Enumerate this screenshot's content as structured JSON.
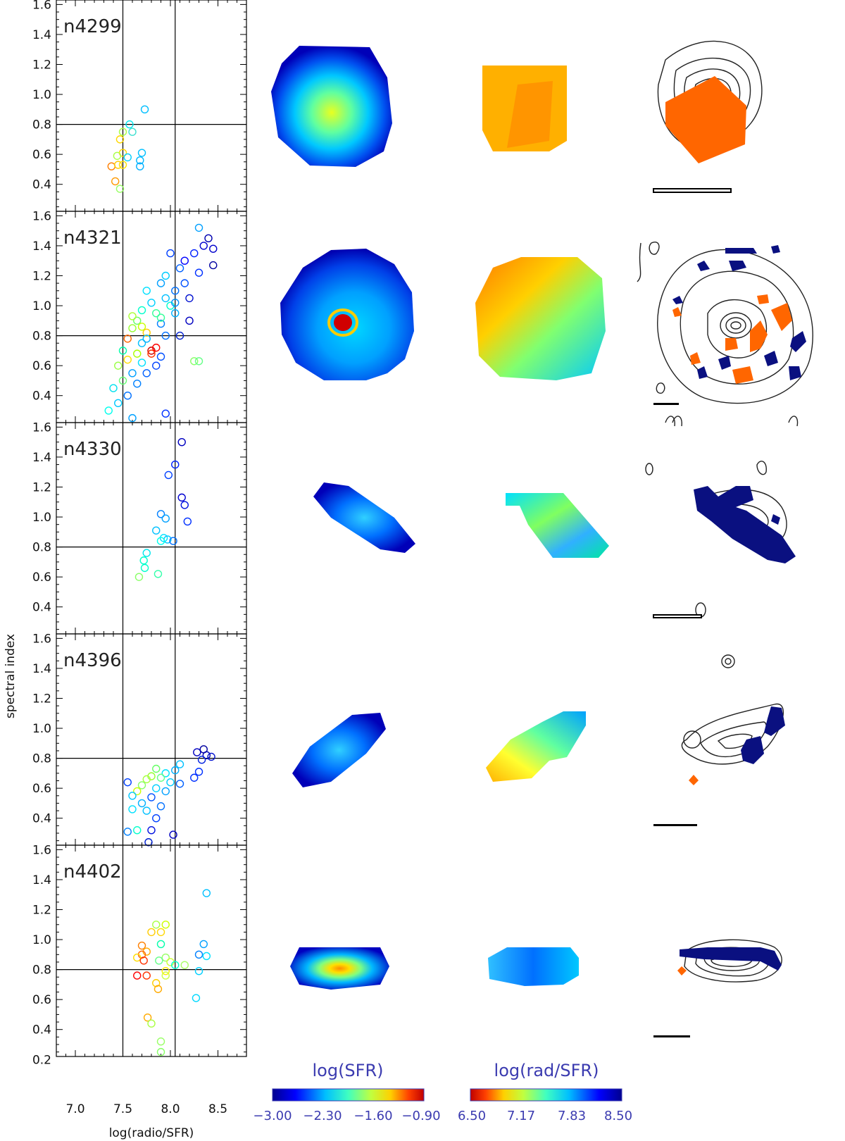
{
  "figure": {
    "ylabel": "spectral index",
    "xlabel": "log(radio/SFR)",
    "x_ticks": [
      "7.0",
      "7.5",
      "8.0",
      "8.5"
    ],
    "y_ticks": [
      "0.4",
      "0.6",
      "0.8",
      "1.0",
      "1.2",
      "1.4",
      "1.6"
    ],
    "y_ticks_last": [
      "0.2",
      "0.4",
      "0.6",
      "0.8",
      "1.0",
      "1.2",
      "1.4",
      "1.6"
    ],
    "colorbar_sfr": {
      "title": "log(SFR)",
      "ticks": [
        "−3.00",
        "−2.30",
        "−1.60",
        "−0.90"
      ]
    },
    "colorbar_rad": {
      "title": "log(rad/SFR)",
      "ticks": [
        "6.50",
        "7.17",
        "7.83",
        "8.50"
      ]
    }
  },
  "chart_data": {
    "type": "scatter",
    "xlabel": "log(radio/SFR)",
    "ylabel": "spectral index",
    "xlim": [
      6.8,
      8.8
    ],
    "ylim": [
      0.22,
      1.63
    ],
    "reference_lines": {
      "x": [
        7.5,
        8.05
      ],
      "y": [
        0.8
      ]
    },
    "colors": {
      "sfr_low": "#00008f",
      "sfr_high": "#c00000",
      "steep": "#000080",
      "flat": "#ff6600"
    },
    "panels": [
      {
        "label": "n4299",
        "points": [
          [
            7.73,
            0.9
          ],
          [
            7.57,
            0.8
          ],
          [
            7.6,
            0.75
          ],
          [
            7.5,
            0.75
          ],
          [
            7.47,
            0.7
          ],
          [
            7.5,
            0.61
          ],
          [
            7.44,
            0.59
          ],
          [
            7.55,
            0.58
          ],
          [
            7.7,
            0.61
          ],
          [
            7.68,
            0.56
          ],
          [
            7.68,
            0.52
          ],
          [
            7.38,
            0.52
          ],
          [
            7.45,
            0.53
          ],
          [
            7.5,
            0.53
          ],
          [
            7.42,
            0.42
          ],
          [
            7.47,
            0.37
          ]
        ],
        "colors": [
          "#00bfff",
          "#00e5ee",
          "#40e0d0",
          "#aaff44",
          "#ffd700",
          "#ffd700",
          "#aaff44",
          "#00d0ff",
          "#00c0ff",
          "#00b8ff",
          "#00b0ff",
          "#ff7f00",
          "#ffcc00",
          "#ffe000",
          "#ff9900",
          "#99ff66"
        ]
      },
      {
        "label": "n4321",
        "points": [
          [
            8.3,
            1.52
          ],
          [
            8.4,
            1.45
          ],
          [
            8.45,
            1.38
          ],
          [
            8.45,
            1.27
          ],
          [
            8.25,
            1.35
          ],
          [
            8.0,
            1.35
          ],
          [
            8.1,
            1.25
          ],
          [
            8.3,
            1.22
          ],
          [
            8.15,
            1.15
          ],
          [
            8.05,
            1.1
          ],
          [
            7.9,
            1.15
          ],
          [
            7.95,
            1.05
          ],
          [
            8.2,
            1.05
          ],
          [
            7.8,
            1.02
          ],
          [
            7.75,
            1.1
          ],
          [
            7.7,
            0.97
          ],
          [
            7.85,
            0.95
          ],
          [
            8.05,
            0.95
          ],
          [
            8.2,
            0.9
          ],
          [
            7.9,
            0.88
          ],
          [
            7.65,
            0.9
          ],
          [
            7.6,
            0.85
          ],
          [
            7.75,
            0.82
          ],
          [
            7.95,
            0.8
          ],
          [
            8.1,
            0.8
          ],
          [
            7.55,
            0.78
          ],
          [
            7.7,
            0.75
          ],
          [
            7.8,
            0.7
          ],
          [
            7.65,
            0.68
          ],
          [
            7.9,
            0.66
          ],
          [
            7.55,
            0.64
          ],
          [
            7.7,
            0.62
          ],
          [
            7.85,
            0.6
          ],
          [
            7.45,
            0.6
          ],
          [
            7.6,
            0.55
          ],
          [
            7.75,
            0.55
          ],
          [
            7.5,
            0.5
          ],
          [
            7.65,
            0.48
          ],
          [
            7.4,
            0.45
          ],
          [
            7.55,
            0.4
          ],
          [
            7.45,
            0.35
          ],
          [
            7.35,
            0.3
          ],
          [
            7.95,
            0.28
          ],
          [
            8.25,
            0.63
          ],
          [
            8.3,
            0.63
          ],
          [
            7.6,
            0.25
          ],
          [
            7.8,
            0.68
          ],
          [
            7.85,
            0.72
          ],
          [
            7.75,
            0.78
          ],
          [
            8.0,
            1.0
          ],
          [
            7.9,
            0.92
          ],
          [
            7.7,
            0.86
          ],
          [
            8.15,
            1.3
          ],
          [
            8.35,
            1.4
          ],
          [
            7.6,
            0.93
          ],
          [
            7.5,
            0.7
          ],
          [
            7.95,
            1.2
          ],
          [
            8.05,
            1.02
          ]
        ],
        "colors": [
          "#00a0ff",
          "#0000b0",
          "#0000cc",
          "#0000a0",
          "#0020ff",
          "#0040ff",
          "#0060ff",
          "#0030ff",
          "#0050ff",
          "#0070ff",
          "#00a0ff",
          "#00c0ff",
          "#0010d0",
          "#00d0ff",
          "#00e0ff",
          "#00ffcc",
          "#33ff99",
          "#00b0ff",
          "#0000c0",
          "#0080ff",
          "#66ff66",
          "#99ff33",
          "#ffcc00",
          "#0070ff",
          "#0020d0",
          "#ff6600",
          "#00c0ff",
          "#cc0000",
          "#aaff00",
          "#0050ff",
          "#ffdd00",
          "#00e0ff",
          "#0040ff",
          "#99ff44",
          "#00a0ff",
          "#0060ff",
          "#66ff77",
          "#0080ff",
          "#00e0ee",
          "#0070ff",
          "#00c8ff",
          "#00ffee",
          "#0030ff",
          "#88ff66",
          "#66ff88",
          "#00a0ff",
          "#ff3300",
          "#ff0000",
          "#00b0ff",
          "#00ffcc",
          "#33ff99",
          "#ccff00",
          "#0000ff",
          "#0000d0",
          "#aaff33",
          "#00ffaa",
          "#00ccff",
          "#0090ff"
        ]
      },
      {
        "label": "n4330",
        "points": [
          [
            8.12,
            1.5
          ],
          [
            8.05,
            1.35
          ],
          [
            7.98,
            1.28
          ],
          [
            8.12,
            1.13
          ],
          [
            8.15,
            1.08
          ],
          [
            7.9,
            1.02
          ],
          [
            8.18,
            0.97
          ],
          [
            7.95,
            0.99
          ],
          [
            7.85,
            0.91
          ],
          [
            7.93,
            0.86
          ],
          [
            7.97,
            0.85
          ],
          [
            7.9,
            0.84
          ],
          [
            8.03,
            0.84
          ],
          [
            7.75,
            0.76
          ],
          [
            7.72,
            0.71
          ],
          [
            7.73,
            0.66
          ],
          [
            7.87,
            0.62
          ],
          [
            7.67,
            0.6
          ]
        ],
        "colors": [
          "#0000c0",
          "#0020ff",
          "#0040ff",
          "#0000d0",
          "#0010e0",
          "#0080ff",
          "#0030ff",
          "#00a0ff",
          "#00c0ff",
          "#00e0ff",
          "#00c8ff",
          "#00ffee",
          "#0070ff",
          "#00e5ee",
          "#00ffcc",
          "#00ffcc",
          "#33ffaa",
          "#88ff66"
        ]
      },
      {
        "label": "n4396",
        "points": [
          [
            8.35,
            0.86
          ],
          [
            8.28,
            0.84
          ],
          [
            8.38,
            0.82
          ],
          [
            8.43,
            0.81
          ],
          [
            8.33,
            0.79
          ],
          [
            8.3,
            0.71
          ],
          [
            8.1,
            0.76
          ],
          [
            8.05,
            0.72
          ],
          [
            8.25,
            0.67
          ],
          [
            7.95,
            0.7
          ],
          [
            7.85,
            0.73
          ],
          [
            7.8,
            0.68
          ],
          [
            7.75,
            0.66
          ],
          [
            7.9,
            0.67
          ],
          [
            8.0,
            0.64
          ],
          [
            7.7,
            0.62
          ],
          [
            7.65,
            0.58
          ],
          [
            7.55,
            0.64
          ],
          [
            7.6,
            0.55
          ],
          [
            7.85,
            0.6
          ],
          [
            7.95,
            0.58
          ],
          [
            8.1,
            0.63
          ],
          [
            7.8,
            0.54
          ],
          [
            7.7,
            0.5
          ],
          [
            7.75,
            0.45
          ],
          [
            7.9,
            0.48
          ],
          [
            7.6,
            0.46
          ],
          [
            7.85,
            0.4
          ],
          [
            7.65,
            0.32
          ],
          [
            7.55,
            0.31
          ],
          [
            7.8,
            0.32
          ],
          [
            8.03,
            0.29
          ],
          [
            7.77,
            0.24
          ]
        ],
        "colors": [
          "#0000a0",
          "#0000c0",
          "#0000b0",
          "#0010d0",
          "#0020e0",
          "#0030ff",
          "#00c0ff",
          "#00b0ff",
          "#0030ff",
          "#00e0ff",
          "#66ff66",
          "#99ff33",
          "#aaff44",
          "#66ff88",
          "#00ccff",
          "#88ff66",
          "#ccff00",
          "#0040ff",
          "#00c8ff",
          "#00d0ff",
          "#00a0ff",
          "#0060ff",
          "#0050ff",
          "#00b0ff",
          "#00c0ff",
          "#0070ff",
          "#00e0ff",
          "#0040ff",
          "#00ffcc",
          "#0080ff",
          "#0010e0",
          "#0000c0",
          "#0020d0"
        ]
      },
      {
        "label": "n4402",
        "points": [
          [
            8.38,
            1.31
          ],
          [
            7.85,
            1.1
          ],
          [
            7.95,
            1.1
          ],
          [
            7.9,
            1.05
          ],
          [
            7.8,
            1.05
          ],
          [
            7.9,
            0.97
          ],
          [
            7.7,
            0.96
          ],
          [
            8.35,
            0.97
          ],
          [
            7.75,
            0.92
          ],
          [
            7.7,
            0.9
          ],
          [
            8.3,
            0.9
          ],
          [
            7.95,
            0.88
          ],
          [
            8.38,
            0.89
          ],
          [
            7.65,
            0.88
          ],
          [
            7.72,
            0.86
          ],
          [
            7.88,
            0.86
          ],
          [
            8.0,
            0.85
          ],
          [
            8.05,
            0.83
          ],
          [
            8.15,
            0.83
          ],
          [
            7.95,
            0.79
          ],
          [
            7.65,
            0.76
          ],
          [
            7.75,
            0.76
          ],
          [
            7.95,
            0.76
          ],
          [
            8.3,
            0.79
          ],
          [
            7.85,
            0.71
          ],
          [
            7.87,
            0.67
          ],
          [
            8.27,
            0.61
          ],
          [
            7.76,
            0.48
          ],
          [
            7.8,
            0.44
          ],
          [
            7.9,
            0.32
          ],
          [
            7.9,
            0.25
          ]
        ],
        "colors": [
          "#00c0ff",
          "#aaff44",
          "#ccff00",
          "#ffd700",
          "#ffcc00",
          "#00ffaa",
          "#ff7f00",
          "#00a0ff",
          "#ffaa00",
          "#ff6600",
          "#0080ff",
          "#99ff66",
          "#00e0ff",
          "#ffdd00",
          "#ff3300",
          "#66ff88",
          "#ccff33",
          "#00ffcc",
          "#aaff66",
          "#ffee00",
          "#ff0000",
          "#ff3300",
          "#ccff44",
          "#00d0ff",
          "#ffcc00",
          "#ffaa00",
          "#00d8ff",
          "#ffaa00",
          "#aaff44",
          "#99ff66",
          "#88ff66"
        ]
      }
    ]
  }
}
